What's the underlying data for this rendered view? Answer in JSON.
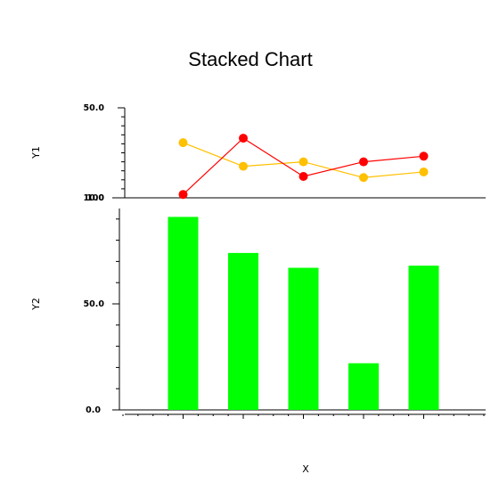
{
  "chart_data": {
    "type": "line",
    "title": "Stacked Chart",
    "xlabel": "X",
    "panels": [
      {
        "type": "line",
        "ylabel": "Y1",
        "ylim": [
          10,
          50
        ],
        "y_tick_labels": [
          "50.0",
          "10.0"
        ],
        "x": [
          1,
          2,
          3,
          4,
          5
        ],
        "series": [
          {
            "color": "#FFC000",
            "values": [
              34.5,
              24.0,
              26.0,
              19.0,
              21.5
            ]
          },
          {
            "color": "#FF0000",
            "values": [
              11.5,
              36.5,
              19.5,
              26.0,
              28.5
            ]
          }
        ]
      },
      {
        "type": "bar",
        "ylabel": "Y2",
        "ylim": [
          0,
          100
        ],
        "y_tick_labels": [
          "100",
          "50.0",
          "0.0"
        ],
        "x": [
          1,
          2,
          3,
          4,
          5
        ],
        "color": "#00FF00",
        "values": [
          91.0,
          74.0,
          67.0,
          22.0,
          68.0
        ]
      }
    ],
    "xlim": [
      0,
      6
    ],
    "grid": false
  }
}
